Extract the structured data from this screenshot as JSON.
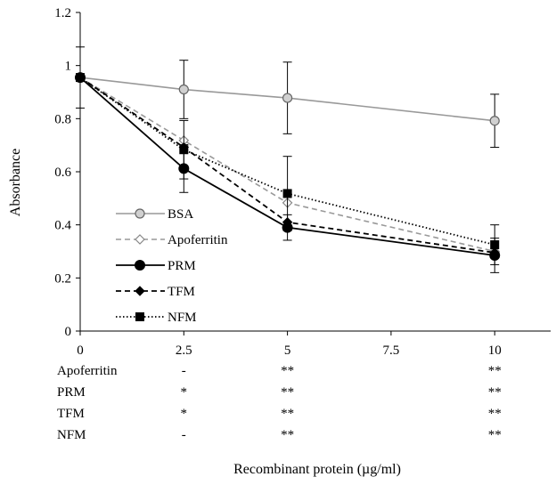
{
  "chart_data": {
    "type": "line",
    "ylabel": "Absorbance",
    "xlabel": "Recombinant protein (µg/ml)",
    "ylim": [
      0,
      1.2
    ],
    "yticks": [
      "0",
      "0.2",
      "0.4",
      "0.6",
      "0.8",
      "1",
      "1.2"
    ],
    "ytick_values": [
      0,
      0.2,
      0.4,
      0.6,
      0.8,
      1.0,
      1.2
    ],
    "xticks": [
      "0",
      "2.5",
      "5",
      "7.5",
      "10"
    ],
    "xtick_values": [
      0,
      2.5,
      5,
      7.5,
      10
    ],
    "x": [
      0,
      2.5,
      5,
      10
    ],
    "legend_position": "left-middle",
    "series": [
      {
        "name": "BSA",
        "values": [
          0.955,
          0.91,
          0.878,
          0.792
        ],
        "errors": [
          0.115,
          0.11,
          0.135,
          0.1
        ],
        "color": "#999999",
        "marker": "circle-open",
        "dash": "solid"
      },
      {
        "name": "Apoferritin",
        "values": [
          0.955,
          0.718,
          0.483,
          0.3
        ],
        "errors": [
          0,
          0,
          0,
          0
        ],
        "color": "#999999",
        "marker": "diamond-open",
        "dash": "dashed"
      },
      {
        "name": "PRM",
        "values": [
          0.955,
          0.612,
          0.39,
          0.285
        ],
        "errors": [
          0,
          0.09,
          0.048,
          0.065
        ],
        "color": "#000000",
        "marker": "circle",
        "dash": "solid"
      },
      {
        "name": "TFM",
        "values": [
          0.955,
          0.692,
          0.41,
          0.295
        ],
        "errors": [
          0,
          0,
          0,
          0
        ],
        "color": "#000000",
        "marker": "diamond",
        "dash": "dashed"
      },
      {
        "name": "NFM",
        "values": [
          0.955,
          0.683,
          0.518,
          0.325
        ],
        "errors": [
          0,
          0.11,
          0.14,
          0.075
        ],
        "color": "#000000",
        "marker": "square",
        "dash": "dotted"
      }
    ],
    "significance_table": {
      "rows": [
        {
          "label": "Apoferritin",
          "marks": [
            "-",
            "**",
            "**"
          ]
        },
        {
          "label": "PRM",
          "marks": [
            "*",
            "**",
            "**"
          ]
        },
        {
          "label": "TFM",
          "marks": [
            "*",
            "**",
            "**"
          ]
        },
        {
          "label": "NFM",
          "marks": [
            "-",
            "**",
            "**"
          ]
        }
      ],
      "x": [
        2.5,
        5,
        10
      ]
    }
  }
}
